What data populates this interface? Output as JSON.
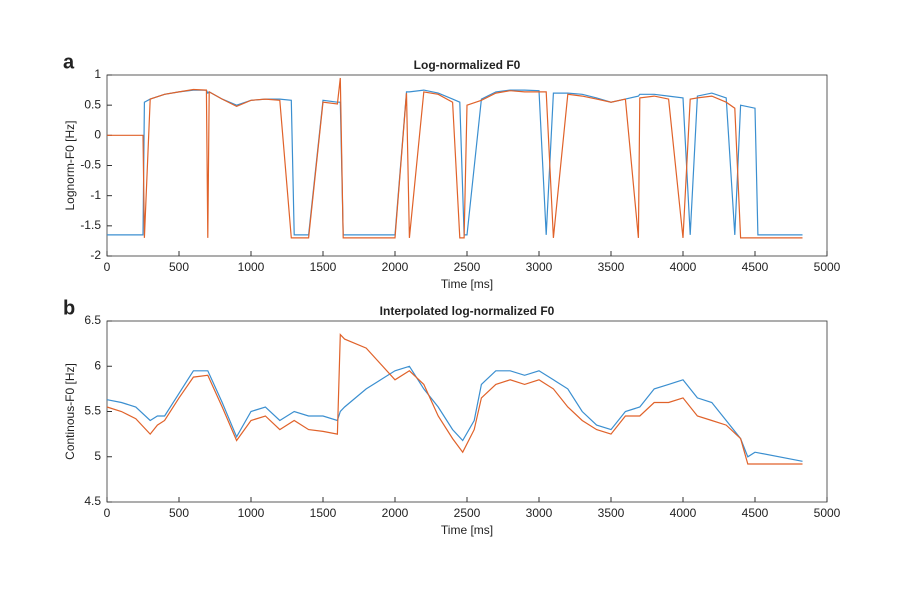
{
  "chart_data": [
    {
      "type": "line",
      "panel_label": "a",
      "title": "Log-normalized F0",
      "xlabel": "Time [ms]",
      "ylabel": "Lognorm-F0 [Hz]",
      "x": [
        0,
        250,
        260,
        300,
        400,
        500,
        600,
        690,
        700,
        710,
        800,
        900,
        1000,
        1100,
        1200,
        1280,
        1300,
        1400,
        1500,
        1600,
        1620,
        1640,
        1660,
        1800,
        2000,
        2080,
        2100,
        2200,
        2300,
        2400,
        2450,
        2480,
        2500,
        2600,
        2700,
        2800,
        2900,
        3000,
        3050,
        3100,
        3200,
        3300,
        3400,
        3500,
        3600,
        3690,
        3700,
        3800,
        3900,
        4000,
        4050,
        4100,
        4200,
        4300,
        4360,
        4400,
        4500,
        4520,
        4600,
        4830
      ],
      "series": [
        {
          "color": "#3b8fd0",
          "values": [
            -1.65,
            -1.65,
            0.55,
            0.6,
            0.68,
            0.72,
            0.75,
            0.75,
            0.7,
            0.72,
            0.6,
            0.5,
            0.58,
            0.6,
            0.6,
            0.58,
            -1.65,
            -1.65,
            0.58,
            0.55,
            0.55,
            -1.65,
            -1.65,
            -1.65,
            -1.65,
            0.72,
            0.72,
            0.75,
            0.7,
            0.6,
            0.55,
            -1.65,
            -1.65,
            0.6,
            0.72,
            0.75,
            0.75,
            0.74,
            -1.65,
            0.7,
            0.7,
            0.68,
            0.62,
            0.55,
            0.6,
            0.65,
            0.68,
            0.68,
            0.65,
            0.62,
            -1.65,
            0.65,
            0.7,
            0.62,
            -1.65,
            0.5,
            0.45,
            -1.65,
            -1.65,
            -1.65
          ]
        },
        {
          "color": "#e0622a",
          "values": [
            0,
            0,
            -1.7,
            0.6,
            0.68,
            0.72,
            0.76,
            0.75,
            -1.7,
            0.72,
            0.6,
            0.48,
            0.58,
            0.6,
            0.58,
            -1.7,
            -1.7,
            -1.7,
            0.55,
            0.52,
            0.95,
            -1.7,
            -1.7,
            -1.7,
            -1.7,
            0.7,
            -1.7,
            0.72,
            0.68,
            0.55,
            -1.7,
            -1.7,
            0.5,
            0.58,
            0.7,
            0.74,
            0.72,
            0.72,
            0.72,
            -1.7,
            0.68,
            0.65,
            0.6,
            0.55,
            0.6,
            -1.7,
            0.62,
            0.65,
            0.6,
            -1.7,
            0.6,
            0.62,
            0.65,
            0.55,
            0.45,
            -1.7,
            -1.7,
            -1.7,
            -1.7,
            -1.7
          ]
        }
      ],
      "xlim": [
        0,
        5000
      ],
      "xticks": [
        0,
        500,
        1000,
        1500,
        2000,
        2500,
        3000,
        3500,
        4000,
        4500,
        5000
      ],
      "ylim": [
        -2,
        1
      ],
      "yticks": [
        -2,
        -1.5,
        -1,
        -0.5,
        0,
        0.5,
        1
      ]
    },
    {
      "type": "line",
      "panel_label": "b",
      "title": "Interpolated log-normalized F0",
      "xlabel": "Time [ms]",
      "ylabel": "Continous-F0 [Hz]",
      "x": [
        0,
        100,
        200,
        300,
        350,
        400,
        500,
        600,
        700,
        800,
        900,
        1000,
        1100,
        1200,
        1300,
        1400,
        1500,
        1600,
        1620,
        1650,
        1800,
        2000,
        2100,
        2200,
        2300,
        2400,
        2470,
        2550,
        2600,
        2700,
        2800,
        2900,
        3000,
        3100,
        3200,
        3300,
        3400,
        3500,
        3600,
        3700,
        3800,
        3900,
        4000,
        4100,
        4200,
        4300,
        4400,
        4450,
        4500,
        4830
      ],
      "series": [
        {
          "color": "#3b8fd0",
          "values": [
            5.63,
            5.6,
            5.55,
            5.4,
            5.45,
            5.45,
            5.7,
            5.95,
            5.95,
            5.6,
            5.22,
            5.5,
            5.55,
            5.4,
            5.5,
            5.45,
            5.45,
            5.4,
            5.5,
            5.55,
            5.75,
            5.95,
            6.0,
            5.75,
            5.55,
            5.3,
            5.18,
            5.4,
            5.8,
            5.95,
            5.95,
            5.9,
            5.95,
            5.85,
            5.75,
            5.5,
            5.35,
            5.3,
            5.5,
            5.55,
            5.75,
            5.8,
            5.85,
            5.65,
            5.6,
            5.4,
            5.2,
            5.0,
            5.05,
            4.95
          ]
        },
        {
          "color": "#e0622a",
          "values": [
            5.55,
            5.5,
            5.42,
            5.25,
            5.35,
            5.4,
            5.65,
            5.88,
            5.9,
            5.55,
            5.18,
            5.4,
            5.45,
            5.3,
            5.4,
            5.3,
            5.28,
            5.25,
            6.35,
            6.3,
            6.2,
            5.85,
            5.95,
            5.8,
            5.45,
            5.2,
            5.05,
            5.3,
            5.65,
            5.8,
            5.85,
            5.8,
            5.85,
            5.75,
            5.55,
            5.4,
            5.3,
            5.25,
            5.45,
            5.45,
            5.6,
            5.6,
            5.65,
            5.45,
            5.4,
            5.35,
            5.2,
            4.92,
            4.92,
            4.92
          ]
        }
      ],
      "xlim": [
        0,
        5000
      ],
      "xticks": [
        0,
        500,
        1000,
        1500,
        2000,
        2500,
        3000,
        3500,
        4000,
        4500,
        5000
      ],
      "ylim": [
        4.5,
        6.5
      ],
      "yticks": [
        4.5,
        5,
        5.5,
        6,
        6.5
      ]
    }
  ]
}
